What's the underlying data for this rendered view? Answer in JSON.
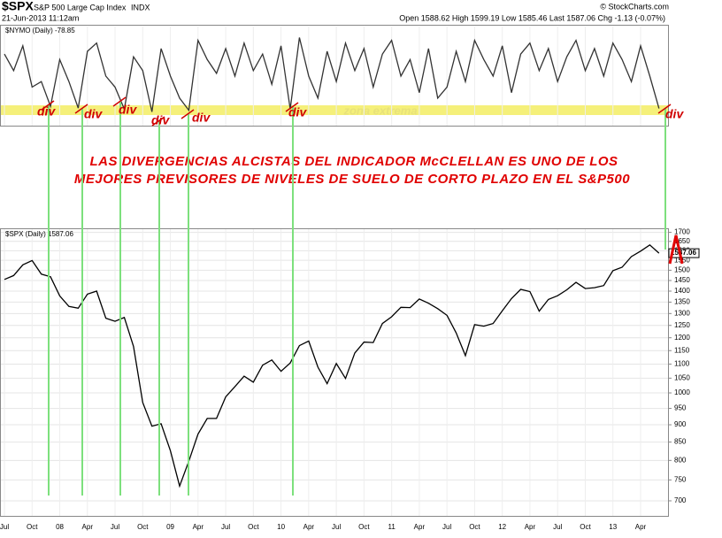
{
  "header": {
    "symbol": "$SPX",
    "name": "S&P 500 Large Cap Index",
    "exchange": "INDX",
    "date": "21-Jun-2013 11:12am",
    "quote": "Open 1588.62  High 1599.19  Low 1585.46  Last 1587.06  Chg -1.13 (-0.07%)",
    "credit": "© StockCharts.com"
  },
  "annotations": {
    "divs": [
      "div",
      "div",
      "div",
      "div",
      "div",
      "div",
      "div"
    ],
    "zone": "zona extrema",
    "headline": [
      "LAS DIVERGENCIAS ALCISTAS DEL INDICADOR McCLELLAN ES UNO DE LOS",
      "MEJORES PREVISORES DE NIVELES DE SUELO DE CORTO PLAZO EN EL S&P500"
    ]
  },
  "chart_data": [
    {
      "type": "line",
      "legend_label": "$NYMO (Daily) -78.85",
      "color": "#333333",
      "categories": [
        "Jul",
        null,
        null,
        "Oct",
        null,
        null,
        "08",
        null,
        null,
        "Apr",
        null,
        null,
        "Jul",
        null,
        null,
        "Oct",
        null,
        null,
        "09",
        null,
        null,
        "Apr",
        null,
        null,
        "Jul",
        null,
        null,
        "Oct",
        null,
        null,
        "10",
        null,
        null,
        "Apr",
        null,
        null,
        "Jul",
        null,
        null,
        "Oct",
        null,
        null,
        "11",
        null,
        null,
        "Apr",
        null,
        null,
        "Jul",
        null,
        null,
        "Oct",
        null,
        null,
        "12",
        null,
        null,
        "Apr",
        null,
        null,
        "Jul",
        null,
        null,
        "Oct",
        null,
        null,
        "13",
        null,
        null,
        "Apr",
        null,
        null
      ],
      "values": [
        20,
        -10,
        35,
        -40,
        -30,
        -75,
        10,
        -30,
        -78,
        25,
        40,
        -20,
        -40,
        -80,
        15,
        -10,
        -85,
        30,
        -20,
        -60,
        -82,
        45,
        10,
        -15,
        30,
        -20,
        40,
        -10,
        20,
        -35,
        35,
        -80,
        50,
        -20,
        -60,
        25,
        -30,
        40,
        -10,
        30,
        -40,
        20,
        45,
        -20,
        10,
        -50,
        30,
        -60,
        -40,
        25,
        -30,
        45,
        10,
        -20,
        35,
        -50,
        20,
        40,
        -10,
        30,
        -30,
        15,
        45,
        -10,
        30,
        -20,
        40,
        10,
        -30,
        35,
        -20,
        -78.85
      ],
      "ylim": [
        -110,
        70
      ]
    },
    {
      "type": "line",
      "legend_label": "$SPX (Daily) 1587.06",
      "last_label": "1587.06",
      "color": "#000000",
      "log": true,
      "grid": true,
      "categories": [
        "Jul",
        null,
        null,
        "Oct",
        null,
        null,
        "08",
        null,
        null,
        "Apr",
        null,
        null,
        "Jul",
        null,
        null,
        "Oct",
        null,
        null,
        "09",
        null,
        null,
        "Apr",
        null,
        null,
        "Jul",
        null,
        null,
        "Oct",
        null,
        null,
        "10",
        null,
        null,
        "Apr",
        null,
        null,
        "Jul",
        null,
        null,
        "Oct",
        null,
        null,
        "11",
        null,
        null,
        "Apr",
        null,
        null,
        "Jul",
        null,
        null,
        "Oct",
        null,
        null,
        "12",
        null,
        null,
        "Apr",
        null,
        null,
        "Jul",
        null,
        null,
        "Oct",
        null,
        null,
        "13",
        null,
        null,
        "Apr",
        null,
        null
      ],
      "values": [
        1455,
        1474,
        1527,
        1549,
        1481,
        1468,
        1378,
        1331,
        1323,
        1386,
        1400,
        1280,
        1267,
        1283,
        1166,
        969,
        896,
        903,
        826,
        735,
        798,
        873,
        919,
        919,
        987,
        1021,
        1057,
        1036,
        1096,
        1115,
        1074,
        1104,
        1169,
        1187,
        1089,
        1031,
        1102,
        1049,
        1141,
        1183,
        1181,
        1258,
        1286,
        1327,
        1326,
        1364,
        1345,
        1321,
        1292,
        1219,
        1131,
        1253,
        1247,
        1258,
        1312,
        1366,
        1408,
        1398,
        1310,
        1362,
        1379,
        1406,
        1441,
        1412,
        1416,
        1426,
        1498,
        1515,
        1569,
        1598,
        1631,
        1587.06
      ],
      "ylim": [
        666,
        1718
      ],
      "yticks": [
        700,
        750,
        800,
        850,
        900,
        950,
        1000,
        1050,
        1100,
        1150,
        1200,
        1250,
        1300,
        1350,
        1400,
        1450,
        1500,
        1550,
        1600,
        1650,
        1700
      ]
    }
  ]
}
